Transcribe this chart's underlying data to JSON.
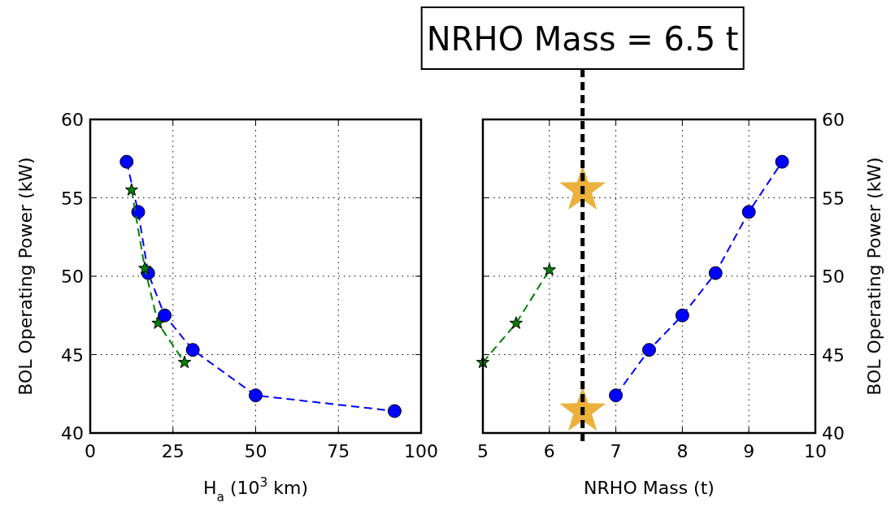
{
  "chart_data": [
    {
      "type": "line",
      "xlabel": "H$_{a}$ (10$^{3}$ km)",
      "ylabel": "BOL Operating Power (kW)",
      "xlim": [
        0,
        100
      ],
      "xticks": [
        0,
        25,
        50,
        75,
        100
      ],
      "ylim": [
        40,
        60
      ],
      "yticks": [
        40,
        45,
        50,
        55,
        60
      ],
      "grid": true,
      "line_style": "dashed",
      "series": [
        {
          "color": "#0000ff",
          "marker": "circle",
          "x": [
            11,
            14.5,
            17.5,
            22.5,
            31,
            50,
            92
          ],
          "values": [
            57.3,
            54.1,
            50.2,
            47.5,
            45.3,
            42.4,
            41.4
          ]
        },
        {
          "color": "#008000",
          "marker": "star",
          "x": [
            12.5,
            16.5,
            20.5,
            28.5
          ],
          "values": [
            55.5,
            50.5,
            47,
            44.5
          ]
        }
      ]
    },
    {
      "type": "line",
      "xlabel": "NRHO Mass (t)",
      "y2label": "BOL Operating Power (kW)",
      "xlim": [
        5,
        10
      ],
      "xticks": [
        5,
        6,
        7,
        8,
        9,
        10
      ],
      "y2lim": [
        40,
        60
      ],
      "y2ticks": [
        40,
        45,
        50,
        55,
        60
      ],
      "grid": true,
      "line_style": "dashed",
      "series": [
        {
          "color": "#0000ff",
          "marker": "circle",
          "axis": "y2",
          "x": [
            7,
            7.5,
            8,
            8.5,
            9,
            9.5
          ],
          "values": [
            42.4,
            45.3,
            47.5,
            50.2,
            54.1,
            57.3
          ]
        },
        {
          "color": "#008000",
          "marker": "star",
          "axis": "y2",
          "x": [
            5,
            5.5,
            6
          ],
          "values": [
            44.5,
            47,
            50.4
          ]
        },
        {
          "type": "scatter",
          "color": "#ebb13c",
          "marker": "star",
          "axis": "y2",
          "x": [
            6.5,
            6.5
          ],
          "values": [
            55.5,
            41.4
          ]
        }
      ],
      "ref_lines": [
        {
          "axis": "x",
          "value": 6.5,
          "label": "NRHO Mass = 6.5 t",
          "color": "#000000",
          "line_style": "dashed"
        }
      ]
    }
  ]
}
